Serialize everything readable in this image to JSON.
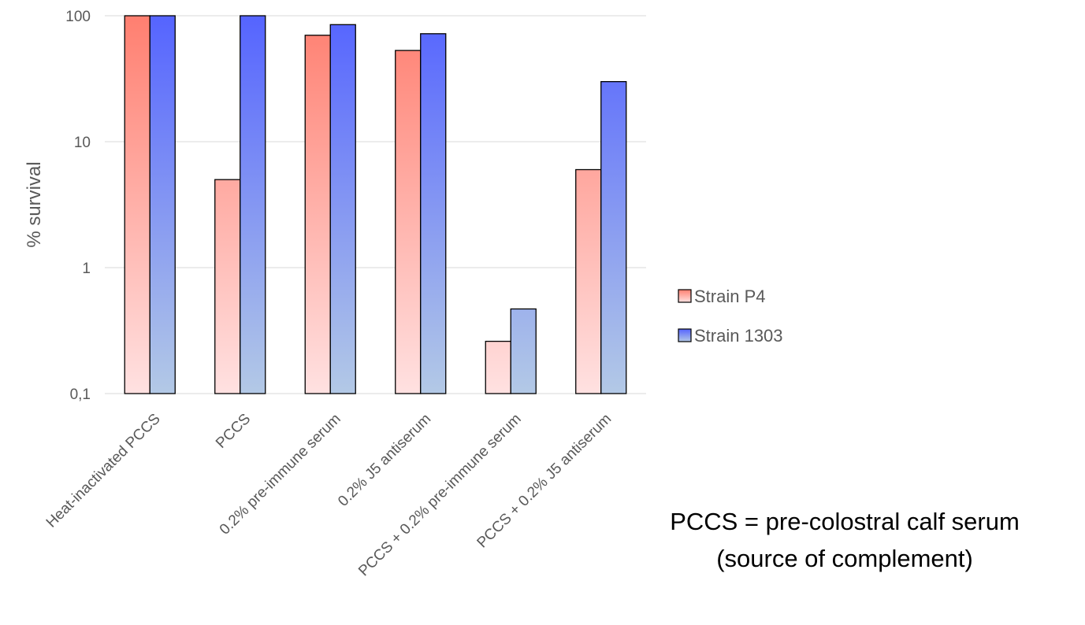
{
  "chart_data": {
    "type": "bar",
    "title": "",
    "xlabel": "",
    "ylabel": "% survival",
    "yscale": "log",
    "ylim": [
      0.1,
      100
    ],
    "yticks": [
      "0,1",
      "1",
      "10",
      "100"
    ],
    "ytick_values": [
      0.1,
      1,
      10,
      100
    ],
    "grid": true,
    "legend_position": "right",
    "categories": [
      "Heat-inactivated PCCS",
      "PCCS",
      "0.2% pre-immune serum",
      "0.2% J5 antiserum",
      "PCCS + 0.2% pre-immune serum",
      "PCCS + 0.2% J5 antiserum"
    ],
    "series": [
      {
        "name": "Strain P4",
        "values": [
          100,
          5,
          70,
          53,
          0.26,
          6
        ],
        "color_top": "#ff7f70",
        "color_bottom": "#ffe1e1"
      },
      {
        "name": "Strain 1303",
        "values": [
          100,
          100,
          85,
          72,
          0.47,
          30
        ],
        "color_top": "#5564ff",
        "color_bottom": "#b3c9e6"
      }
    ],
    "annotation": {
      "line1": "PCCS = pre-colostral calf serum",
      "line2": "(source of complement)"
    }
  }
}
